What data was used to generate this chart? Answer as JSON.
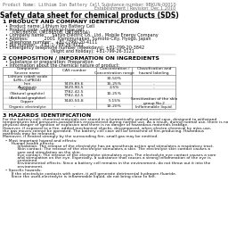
{
  "title": "Safety data sheet for chemical products (SDS)",
  "header_left": "Product Name: Lithium Ion Battery Cell",
  "header_right_1": "Substance number: 9BKUN-00010",
  "header_right_2": "Establishment / Revision: Dec.1.2010",
  "section1_title": "1 PRODUCT AND COMPANY IDENTIFICATION",
  "section1_lines": [
    "  • Product name: Lithium Ion Battery Cell",
    "  • Product code: Cylindrical-type cell",
    "       (UR18650A, UR18650B, UR18650A)",
    "  • Company name:     Sanyo Electric Co., Ltd., Mobile Energy Company",
    "  • Address:            2001  Kamimunakan, Sumoto-City, Hyogo, Japan",
    "  • Telephone number:   +81-(799)-20-4111",
    "  • Fax number:   +81-1-799-26-4121",
    "  • Emergency telephone number (Weekdays): +81-799-20-3842",
    "                                    (Night and holiday): +81-799-26-3121"
  ],
  "section2_title": "2 COMPOSITION / INFORMATION ON INGREDIENTS",
  "section2_intro": "  • Substance or preparation: Preparation",
  "section2_sub": "  • Information about the chemical nature of product:",
  "table_headers": [
    "Component\nSevere name",
    "CAS number",
    "Concentration /\nConcentration range",
    "Classification and\nhazard labeling"
  ],
  "table_rows": [
    [
      "Lithium cobalt oxide\n(LiMn-CoPBO4)",
      "-",
      "30-50%",
      ""
    ],
    [
      "Iron",
      "7439-89-6",
      "15-25%",
      "-"
    ],
    [
      "Aluminum",
      "7429-90-5",
      "2-5%",
      "-"
    ],
    [
      "Graphite\n(Natural graphite)\n(Artificial graphite)",
      "7782-42-5\n7782-42-5",
      "10-25%",
      ""
    ],
    [
      "Copper",
      "7440-50-8",
      "5-15%",
      "Sensitization of the skin\ngroup No.2"
    ],
    [
      "Organic electrolyte",
      "-",
      "10-20%",
      "Inflammable liquid"
    ]
  ],
  "section3_title": "3 HAZARDS IDENTIFICATION",
  "section3_text": [
    "For the battery cell, chemical materials are stored in a hermetically sealed metal case, designed to withstand",
    "temperatures and pressures-possibilities encountered during normal use. As a result, during normal use, there is no",
    "physical danger of ignition or explosion and there is no danger of hazardous materials leakage.",
    "However, if exposed to a fire, added mechanical shocks, decomposed, when electro-chemical by miss-use,",
    "the gas moves cannot be operated. The battery cell case will be breached of fire-producing. Hazardous",
    "materials may be released.",
    "Moreover, if heated strongly by the surrounding fire, small gas may be emitted.",
    "",
    "  • Most important hazard and effects:",
    "       Human health effects:",
    "            Inhalation: The release of the electrolyte has an anesthesia action and stimulates a respiratory tract.",
    "            Skin contact: The release of the electrolyte stimulates a skin. The electrolyte skin contact causes a",
    "            sore and stimulation on the skin.",
    "            Eye contact: The release of the electrolyte stimulates eyes. The electrolyte eye contact causes a sore",
    "            and stimulation on the eye. Especially, a substance that causes a strong inflammation of the eye is",
    "            contained.",
    "            Environmental effects: Since a battery cell remains in the environment, do not throw out it into the",
    "            environment.",
    "",
    "  • Specific hazards:",
    "       If the electrolyte contacts with water, it will generate detrimental hydrogen fluoride.",
    "       Since the used-electrolyte is inflammable liquid, do not bring close to fire."
  ],
  "bg_color": "#ffffff",
  "text_color": "#111111",
  "title_color": "#000000",
  "section_color": "#000000",
  "line_color": "#999999",
  "fs_tiny": 3.5,
  "fs_title": 5.5,
  "fs_section": 4.5,
  "fs_body": 3.5,
  "fs_table": 3.2
}
